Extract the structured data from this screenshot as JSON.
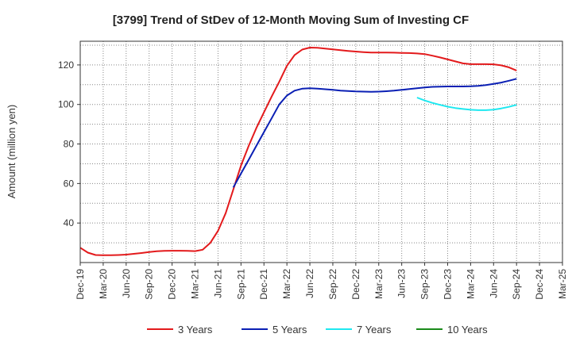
{
  "chart_data": {
    "type": "line",
    "title": "[3799]  Trend of StDev of 12-Month Moving Sum of Investing CF",
    "xlabel": "",
    "ylabel": "Amount (million yen)",
    "ylim": [
      20,
      132
    ],
    "yticks": [
      40,
      60,
      80,
      100,
      120
    ],
    "x_ticks": [
      "Dec-19",
      "Mar-20",
      "Jun-20",
      "Sep-20",
      "Dec-20",
      "Mar-21",
      "Jun-21",
      "Sep-21",
      "Dec-21",
      "Mar-22",
      "Jun-22",
      "Sep-22",
      "Dec-22",
      "Mar-23",
      "Jun-23",
      "Sep-23",
      "Dec-23",
      "Mar-24",
      "Jun-24",
      "Sep-24",
      "Dec-24",
      "Mar-25"
    ],
    "grid": true,
    "legend_position": "bottom",
    "series": [
      {
        "name": "3 Years",
        "color": "#e31a1c",
        "points": [
          [
            "Dec-19",
            27.5
          ],
          [
            "Jan-20",
            25
          ],
          [
            "Feb-20",
            23.8
          ],
          [
            "Mar-20",
            23.7
          ],
          [
            "Apr-20",
            23.7
          ],
          [
            "May-20",
            23.8
          ],
          [
            "Jun-20",
            24
          ],
          [
            "Jul-20",
            24.4
          ],
          [
            "Aug-20",
            24.8
          ],
          [
            "Sep-20",
            25.3
          ],
          [
            "Oct-20",
            25.7
          ],
          [
            "Nov-20",
            25.9
          ],
          [
            "Dec-20",
            26
          ],
          [
            "Jan-21",
            26
          ],
          [
            "Feb-21",
            25.9
          ],
          [
            "Mar-21",
            25.8
          ],
          [
            "Apr-21",
            26.5
          ],
          [
            "May-21",
            30
          ],
          [
            "Jun-21",
            36
          ],
          [
            "Jul-21",
            45
          ],
          [
            "Aug-21",
            57
          ],
          [
            "Sep-21",
            69
          ],
          [
            "Oct-21",
            79
          ],
          [
            "Nov-21",
            88
          ],
          [
            "Dec-21",
            96
          ],
          [
            "Jan-22",
            104
          ],
          [
            "Feb-22",
            111.5
          ],
          [
            "Mar-22",
            119.5
          ],
          [
            "Apr-22",
            125
          ],
          [
            "May-22",
            127.8
          ],
          [
            "Jun-22",
            128.8
          ],
          [
            "Jul-22",
            128.7
          ],
          [
            "Aug-22",
            128.3
          ],
          [
            "Sep-22",
            127.9
          ],
          [
            "Oct-22",
            127.5
          ],
          [
            "Nov-22",
            127.1
          ],
          [
            "Dec-22",
            126.8
          ],
          [
            "Jan-23",
            126.5
          ],
          [
            "Feb-23",
            126.3
          ],
          [
            "Mar-23",
            126.3
          ],
          [
            "Apr-23",
            126.3
          ],
          [
            "May-23",
            126.2
          ],
          [
            "Jun-23",
            126.1
          ],
          [
            "Jul-23",
            126
          ],
          [
            "Aug-23",
            125.8
          ],
          [
            "Sep-23",
            125.5
          ],
          [
            "Oct-23",
            124.7
          ],
          [
            "Nov-23",
            123.8
          ],
          [
            "Dec-23",
            122.8
          ],
          [
            "Jan-24",
            121.8
          ],
          [
            "Feb-24",
            120.8
          ],
          [
            "Mar-24",
            120.4
          ],
          [
            "Apr-24",
            120.4
          ],
          [
            "May-24",
            120.4
          ],
          [
            "Jun-24",
            120.3
          ],
          [
            "Jul-24",
            119.8
          ],
          [
            "Aug-24",
            118.8
          ],
          [
            "Sep-24",
            117.2
          ]
        ]
      },
      {
        "name": "5 Years",
        "color": "#0a1fb4",
        "points": [
          [
            "Aug-21",
            58
          ],
          [
            "Sep-21",
            65
          ],
          [
            "Oct-21",
            72
          ],
          [
            "Nov-21",
            79
          ],
          [
            "Dec-21",
            86
          ],
          [
            "Jan-22",
            93
          ],
          [
            "Feb-22",
            100
          ],
          [
            "Mar-22",
            104.5
          ],
          [
            "Apr-22",
            107
          ],
          [
            "May-22",
            108
          ],
          [
            "Jun-22",
            108.2
          ],
          [
            "Jul-22",
            108
          ],
          [
            "Aug-22",
            107.7
          ],
          [
            "Sep-22",
            107.4
          ],
          [
            "Oct-22",
            107
          ],
          [
            "Nov-22",
            106.8
          ],
          [
            "Dec-22",
            106.6
          ],
          [
            "Jan-23",
            106.5
          ],
          [
            "Feb-23",
            106.4
          ],
          [
            "Mar-23",
            106.5
          ],
          [
            "Apr-23",
            106.7
          ],
          [
            "May-23",
            107
          ],
          [
            "Jun-23",
            107.4
          ],
          [
            "Jul-23",
            107.8
          ],
          [
            "Aug-23",
            108.2
          ],
          [
            "Sep-23",
            108.6
          ],
          [
            "Oct-23",
            108.9
          ],
          [
            "Nov-23",
            109
          ],
          [
            "Dec-23",
            109.1
          ],
          [
            "Jan-24",
            109.1
          ],
          [
            "Feb-24",
            109.1
          ],
          [
            "Mar-24",
            109.2
          ],
          [
            "Apr-24",
            109.4
          ],
          [
            "May-24",
            109.8
          ],
          [
            "Jun-24",
            110.4
          ],
          [
            "Jul-24",
            111.1
          ],
          [
            "Aug-24",
            112
          ],
          [
            "Sep-24",
            113
          ]
        ]
      },
      {
        "name": "7 Years",
        "color": "#1ee8f0",
        "points": [
          [
            "Aug-23",
            103.5
          ],
          [
            "Sep-23",
            102
          ],
          [
            "Oct-23",
            100.8
          ],
          [
            "Nov-23",
            99.8
          ],
          [
            "Dec-23",
            98.9
          ],
          [
            "Jan-24",
            98.2
          ],
          [
            "Feb-24",
            97.7
          ],
          [
            "Mar-24",
            97.3
          ],
          [
            "Apr-24",
            97.1
          ],
          [
            "May-24",
            97.1
          ],
          [
            "Jun-24",
            97.4
          ],
          [
            "Jul-24",
            98
          ],
          [
            "Aug-24",
            98.8
          ],
          [
            "Sep-24",
            99.8
          ]
        ]
      },
      {
        "name": "10 Years",
        "color": "#1a8a1a",
        "points": []
      }
    ]
  }
}
